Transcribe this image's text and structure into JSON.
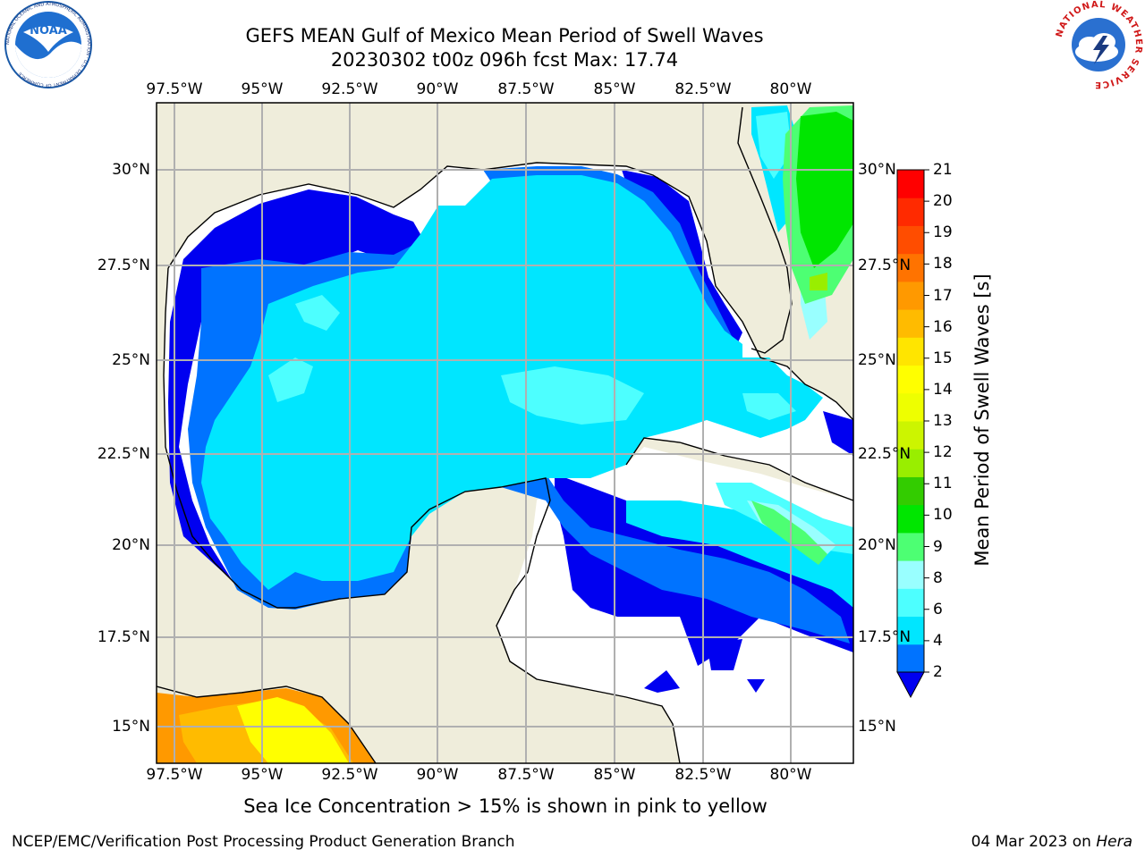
{
  "title": {
    "line1": "GEFS MEAN Gulf of Mexico Mean Period of Swell Waves",
    "line2": "20230302 t00z 096h fcst   Max: 17.74"
  },
  "map": {
    "lon_labels": [
      "97.5°W",
      "95°W",
      "92.5°W",
      "90°W",
      "87.5°W",
      "85°W",
      "82.5°W",
      "80°W"
    ],
    "lat_labels": [
      "30°N",
      "27.5°N",
      "25°N",
      "22.5°N",
      "20°N",
      "17.5°N",
      "15°N"
    ],
    "lat_labels_right": [
      "30°N",
      "27.5°N",
      "25°N",
      "22.5°N",
      "20°N",
      "17.5°N",
      "15°N"
    ],
    "land_color": "#efeddb",
    "grid_color": "#b0b0b0"
  },
  "colorbar": {
    "label": "Mean Period of Swell Waves [s]",
    "ticks": [
      "21",
      "20",
      "19",
      "18",
      "17",
      "16",
      "15",
      "14",
      "13",
      "12",
      "11",
      "10",
      "9",
      "8",
      "6",
      "4",
      "2"
    ],
    "under_color": "#0000f0",
    "colors": [
      "#0073ff",
      "#00e6ff",
      "#4dffff",
      "#99ffff",
      "#4dff73",
      "#00e600",
      "#33cc00",
      "#99ee00",
      "#ccf500",
      "#eeff00",
      "#ffff00",
      "#ffe500",
      "#ffbb00",
      "#ff9900",
      "#ff7300",
      "#ff4d00",
      "#ff2a00",
      "#ff0000"
    ]
  },
  "caption": "Sea Ice Concentration > 15% is shown in pink to yellow",
  "footer": {
    "left": "NCEP/EMC/Verification Post Processing Product Generation Branch",
    "right_prefix": "04 Mar 2023 on ",
    "right_italic": "Hera"
  },
  "logos": {
    "left": "noaa-logo",
    "right": "national-weather-service-logo",
    "left_text": "NATIONAL OCEANIC AND ATMOSPHERIC ADMINISTRATION · U.S. DEPARTMENT OF COMMERCE",
    "right_text": "NATIONAL WEATHER SERVICE"
  }
}
